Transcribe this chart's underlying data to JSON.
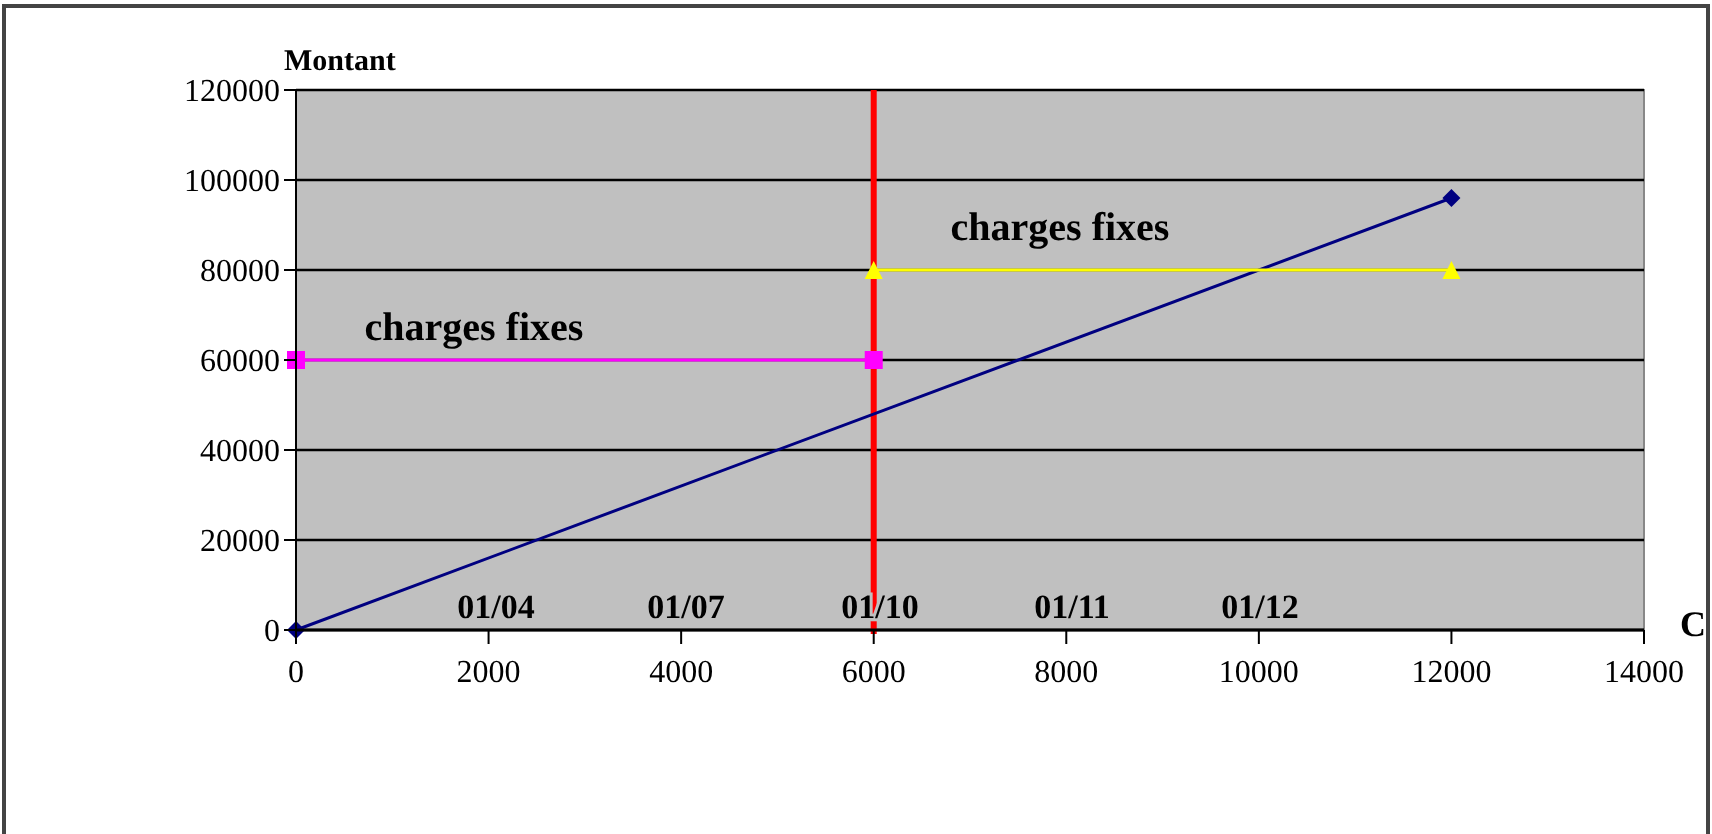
{
  "chart_data": {
    "type": "line",
    "ylabel": "Montant",
    "xlabel": "C",
    "xlim": [
      0,
      14000
    ],
    "xticks": [
      0,
      2000,
      4000,
      6000,
      8000,
      10000,
      12000,
      14000
    ],
    "ylim": [
      0,
      120000
    ],
    "yticks": [
      0,
      20000,
      40000,
      60000,
      80000,
      100000,
      120000
    ],
    "grid": "y",
    "line_style": "solid",
    "series": [
      {
        "color": "#000080",
        "marker": "diamond",
        "x": [
          0,
          12000
        ],
        "values": [
          0,
          96000
        ]
      },
      {
        "color": "#ff00ff",
        "marker": "square",
        "x": [
          0,
          6000
        ],
        "values": [
          60000,
          60000
        ]
      },
      {
        "color": "#ffff00",
        "marker": "triangle",
        "x": [
          6000,
          12000
        ],
        "values": [
          80000,
          80000
        ]
      }
    ],
    "ref_lines": [
      {
        "axis": "x",
        "value": 6000,
        "color": "#ff0000"
      }
    ],
    "annotations": [
      "charges fixes",
      "charges fixes",
      "01/04",
      "01/07",
      "01/10",
      "01/11",
      "01/12"
    ]
  }
}
